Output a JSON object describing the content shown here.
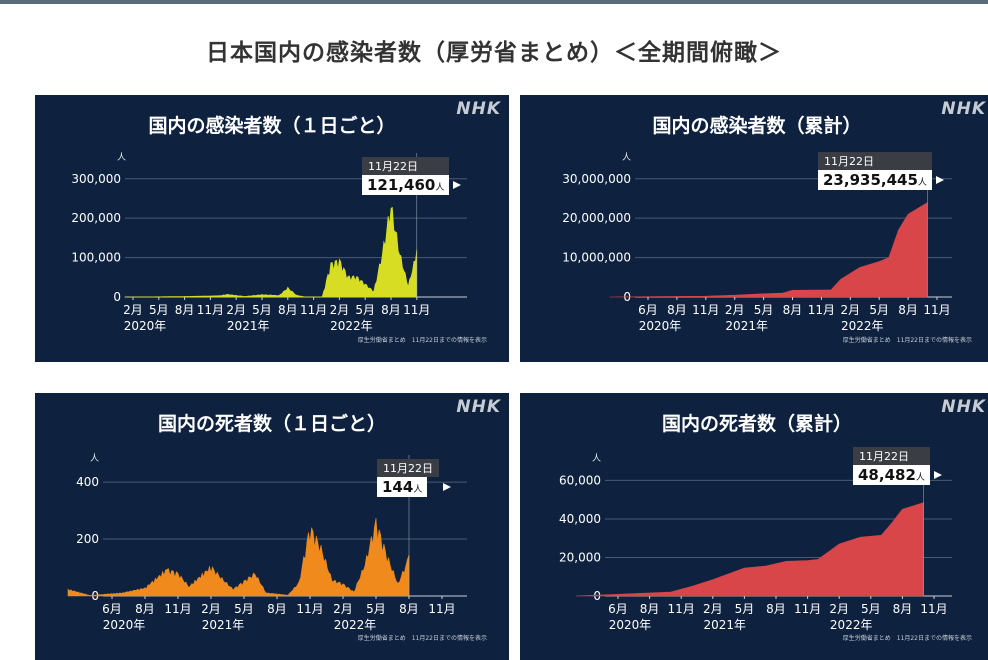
{
  "page_title": "日本国内の感染者数（厚労省まとめ）＜全期間俯瞰＞",
  "brand": "NHK",
  "source_note": "厚生労働省まとめ　11月22日までの情報を表示",
  "unit_label": "人",
  "colors": {
    "panel_bg": "#0e2240",
    "daily_cases": "#d6dd22",
    "daily_deaths": "#f08a1c",
    "cumulative": "#d9464a"
  },
  "chart_data": [
    {
      "id": "daily-cases",
      "type": "area",
      "title": "国内の感染者数（１日ごと）",
      "ylim": [
        0,
        340000
      ],
      "yticks": [
        "0",
        "100,000",
        "200,000",
        "300,000"
      ],
      "ytick_values": [
        0,
        100000,
        200000,
        300000
      ],
      "xticks": [
        "2月",
        "5月",
        "8月",
        "11月",
        "2月",
        "5月",
        "8月",
        "11月",
        "2月",
        "5月",
        "8月",
        "11月"
      ],
      "years": [
        "2020年",
        "2021年",
        "2022年"
      ],
      "x": [
        "2020-01",
        "2020-04",
        "2020-08",
        "2020-12",
        "2021-01",
        "2021-03",
        "2021-05",
        "2021-07",
        "2021-08",
        "2021-09",
        "2021-10",
        "2021-12",
        "2022-01",
        "2022-02",
        "2022-03",
        "2022-04",
        "2022-05",
        "2022-06",
        "2022-07",
        "2022-08",
        "2022-09",
        "2022-10",
        "2022-11"
      ],
      "values": [
        0,
        500,
        1500,
        3500,
        7000,
        1500,
        6500,
        4000,
        25000,
        5000,
        300,
        300,
        90000,
        100000,
        55000,
        55000,
        35000,
        15000,
        120000,
        250000,
        120000,
        30000,
        121460
      ],
      "callout": {
        "date": "11月22日",
        "value": "121,460",
        "unit": "人"
      }
    },
    {
      "id": "cumulative-cases",
      "type": "area",
      "title": "国内の感染者数（累計）",
      "ylim": [
        0,
        34000000
      ],
      "yticks": [
        "0",
        "10,000,000",
        "20,000,000",
        "30,000,000"
      ],
      "ytick_values": [
        0,
        10000000,
        20000000,
        30000000
      ],
      "xticks": [
        "6月",
        "8月",
        "11月",
        "2月",
        "5月",
        "8月",
        "11月",
        "2月",
        "5月",
        "8月",
        "11月"
      ],
      "years": [
        "2020年",
        "2021年",
        "2022年"
      ],
      "x": [
        "2020-02",
        "2020-12",
        "2021-03",
        "2021-06",
        "2021-08",
        "2021-09",
        "2022-01",
        "2022-02",
        "2022-04",
        "2022-06",
        "2022-07",
        "2022-08",
        "2022-09",
        "2022-11"
      ],
      "values": [
        0,
        200000,
        450000,
        800000,
        1000000,
        1700000,
        1800000,
        4500000,
        7500000,
        9000000,
        10000000,
        17000000,
        21000000,
        23935445
      ],
      "callout": {
        "date": "11月22日",
        "value": "23,935,445",
        "unit": "人"
      }
    },
    {
      "id": "daily-deaths",
      "type": "area",
      "title": "国内の死者数（１日ごと）",
      "ylim": [
        0,
        460
      ],
      "yticks": [
        "0",
        "200",
        "400"
      ],
      "ytick_values": [
        0,
        200,
        400
      ],
      "xticks": [
        "6月",
        "8月",
        "11月",
        "2月",
        "5月",
        "8月",
        "11月",
        "2月",
        "5月",
        "8月",
        "11月"
      ],
      "years": [
        "2020年",
        "2021年",
        "2022年"
      ],
      "x": [
        "2020-04",
        "2020-06",
        "2020-09",
        "2020-11",
        "2021-01",
        "2021-02",
        "2021-03",
        "2021-05",
        "2021-06",
        "2021-07",
        "2021-08",
        "2021-09",
        "2021-10",
        "2021-12",
        "2022-01",
        "2022-02",
        "2022-03",
        "2022-04",
        "2022-05",
        "2022-06",
        "2022-07",
        "2022-08",
        "2022-09",
        "2022-10",
        "2022-11"
      ],
      "values": [
        25,
        2,
        12,
        30,
        100,
        85,
        35,
        110,
        65,
        25,
        55,
        85,
        12,
        3,
        50,
        260,
        180,
        60,
        45,
        15,
        120,
        280,
        150,
        45,
        144
      ],
      "callout": {
        "date": "11月22日",
        "value": "144",
        "unit": "人"
      }
    },
    {
      "id": "cumulative-deaths",
      "type": "area",
      "title": "国内の死者数（累計）",
      "ylim": [
        0,
        68000
      ],
      "yticks": [
        "0",
        "20,000",
        "40,000",
        "60,000"
      ],
      "ytick_values": [
        0,
        20000,
        40000,
        60000
      ],
      "xticks": [
        "6月",
        "8月",
        "11月",
        "2月",
        "5月",
        "8月",
        "11月",
        "2月",
        "5月",
        "8月",
        "11月"
      ],
      "years": [
        "2020年",
        "2021年",
        "2022年"
      ],
      "x": [
        "2020-02",
        "2020-11",
        "2021-01",
        "2021-03",
        "2021-06",
        "2021-08",
        "2021-10",
        "2021-12",
        "2022-01",
        "2022-03",
        "2022-05",
        "2022-07",
        "2022-08",
        "2022-09",
        "2022-11"
      ],
      "values": [
        0,
        2000,
        5000,
        8500,
        14500,
        15500,
        18000,
        18400,
        19000,
        27000,
        30500,
        31500,
        38000,
        45000,
        48482
      ],
      "callout": {
        "date": "11月22日",
        "value": "48,482",
        "unit": "人"
      }
    }
  ]
}
